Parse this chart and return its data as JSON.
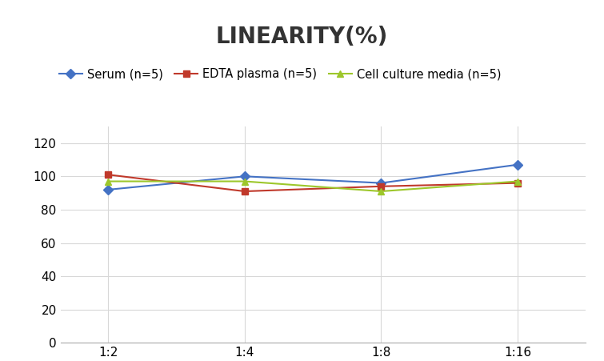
{
  "title": "LINEARITY(%)",
  "x_labels": [
    "1:2",
    "1:4",
    "1:8",
    "1:16"
  ],
  "x_positions": [
    1,
    2,
    3,
    4
  ],
  "series": [
    {
      "label": "Serum (n=5)",
      "values": [
        92,
        100,
        96,
        107
      ],
      "color": "#4472C4",
      "marker": "D",
      "markersize": 6
    },
    {
      "label": "EDTA plasma (n=5)",
      "values": [
        101,
        91,
        94,
        96
      ],
      "color": "#C0392B",
      "marker": "s",
      "markersize": 6
    },
    {
      "label": "Cell culture media (n=5)",
      "values": [
        97,
        97,
        91,
        97
      ],
      "color": "#9DC72B",
      "marker": "^",
      "markersize": 6
    }
  ],
  "ylim": [
    0,
    130
  ],
  "yticks": [
    0,
    20,
    40,
    60,
    80,
    100,
    120
  ],
  "grid_color": "#D8D8D8",
  "background_color": "#FFFFFF",
  "title_fontsize": 20,
  "legend_fontsize": 10.5,
  "tick_fontsize": 11
}
